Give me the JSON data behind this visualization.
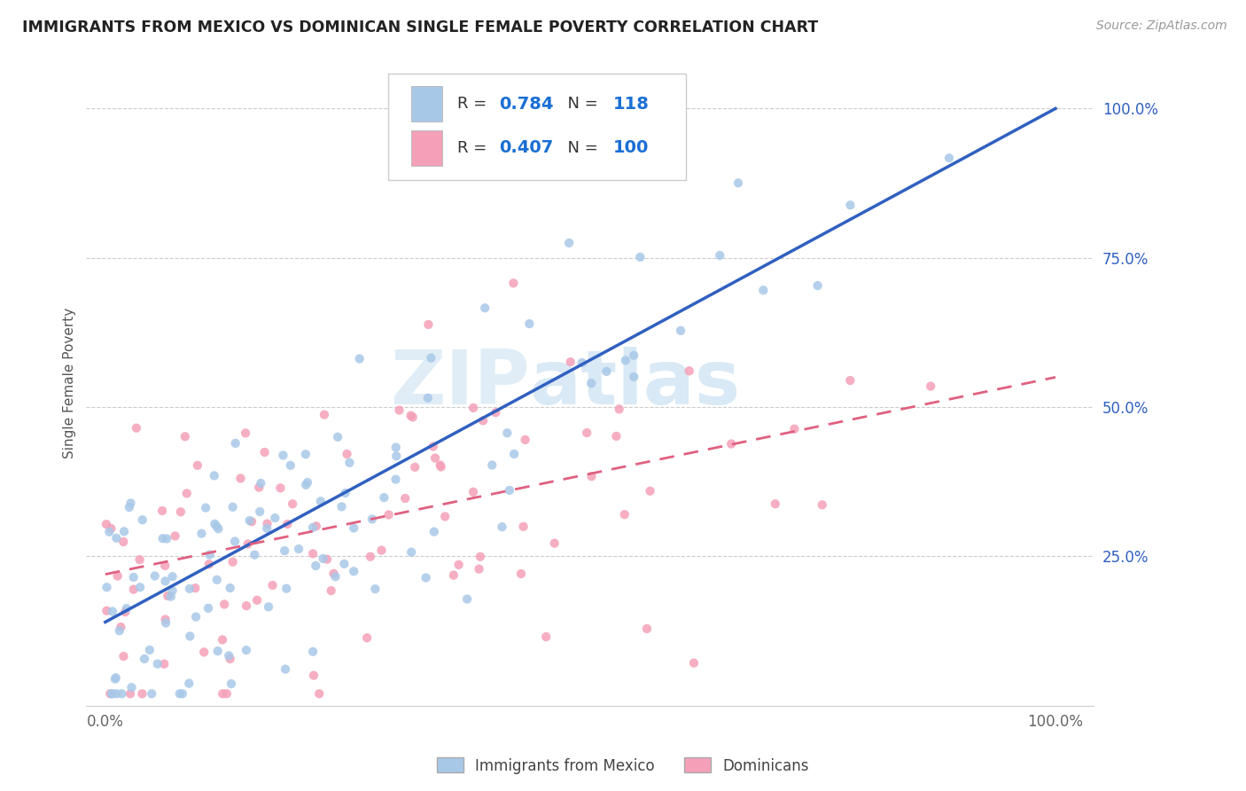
{
  "title": "IMMIGRANTS FROM MEXICO VS DOMINICAN SINGLE FEMALE POVERTY CORRELATION CHART",
  "source": "Source: ZipAtlas.com",
  "ylabel": "Single Female Poverty",
  "legend_label1": "Immigrants from Mexico",
  "legend_label2": "Dominicans",
  "R1": 0.784,
  "N1": 118,
  "R2": 0.407,
  "N2": 100,
  "color_mexico": "#a8c8e8",
  "color_dominican": "#f4a0b8",
  "line_color_mexico": "#3060c0",
  "line_color_dominican": "#e06080",
  "watermark_zip": "ZIP",
  "watermark_atlas": "atlas",
  "line_mex_x0": 0.0,
  "line_mex_y0": 0.14,
  "line_mex_x1": 1.0,
  "line_mex_y1": 1.0,
  "line_dom_x0": 0.0,
  "line_dom_y0": 0.22,
  "line_dom_x1": 1.0,
  "line_dom_y1": 0.55,
  "ylim_min": 0.0,
  "ylim_max": 1.08,
  "xlim_min": -0.02,
  "xlim_max": 1.04
}
